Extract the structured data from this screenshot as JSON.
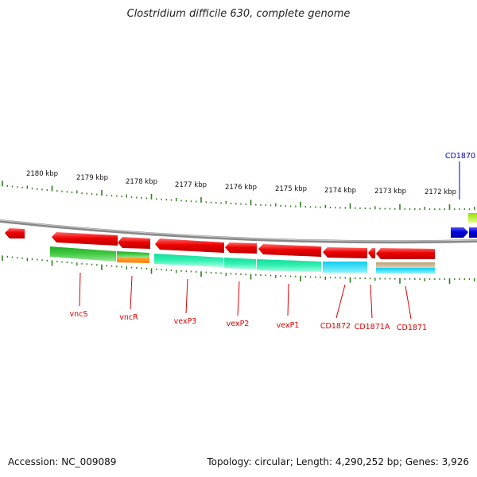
{
  "header": {
    "title": "Clostridium difficile 630, complete genome"
  },
  "footer": {
    "accession": "Accession: NC_009089",
    "summary": "Topology: circular; Length: 4,290,252 bp; Genes: 3,926"
  },
  "map": {
    "kbp_labels": [
      "2180 kbp",
      "2179 kbp",
      "2178 kbp",
      "2177 kbp",
      "2176 kbp",
      "2175 kbp",
      "2174 kbp",
      "2173 kbp",
      "2172 kbp"
    ],
    "genes": [
      {
        "name": "vncS",
        "color": "#dd0000"
      },
      {
        "name": "vncR",
        "color": "#dd0000"
      },
      {
        "name": "vexP3",
        "color": "#dd0000"
      },
      {
        "name": "vexP2",
        "color": "#dd0000"
      },
      {
        "name": "vexP1",
        "color": "#dd0000"
      },
      {
        "name": "CD1872",
        "color": "#dd0000"
      },
      {
        "name": "CD1871A",
        "color": "#dd0000"
      },
      {
        "name": "CD1871",
        "color": "#dd0000"
      },
      {
        "name": "CD1870",
        "color": "#0000cc"
      }
    ],
    "colors": {
      "cds_forward": "#ee0000",
      "cds_reverse_blue": "#0000dd",
      "backbone": "#888888",
      "tick": "#2e7d1e",
      "feature_green": "#33bb33",
      "feature_orange": "#ff8800",
      "feature_teal": "#22eeaa",
      "feature_cyan": "#22ddee",
      "feature_tan": "#c8b490",
      "feature_lime": "#aaee22"
    }
  }
}
